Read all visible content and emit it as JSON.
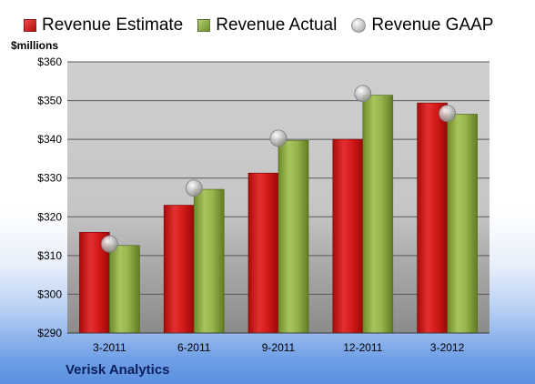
{
  "unit_label": "$millions",
  "company": "Verisk Analytics",
  "legend": [
    {
      "label": "Revenue Estimate",
      "kind": "bar",
      "color": "#c81414"
    },
    {
      "label": "Revenue Actual",
      "kind": "bar",
      "color": "#8fae45"
    },
    {
      "label": "Revenue GAAP",
      "kind": "marker",
      "color": "#b5b5b5"
    }
  ],
  "chart_data": {
    "type": "bar",
    "categories": [
      "3-2011",
      "6-2011",
      "9-2011",
      "12-2011",
      "3-2012"
    ],
    "series": [
      {
        "name": "Revenue Estimate",
        "values": [
          316,
          323,
          331.3,
          340,
          349.4
        ]
      },
      {
        "name": "Revenue Actual",
        "values": [
          312.6,
          327.1,
          339.7,
          351.4,
          346.5
        ]
      },
      {
        "name": "Revenue GAAP",
        "type": "scatter",
        "values": [
          313,
          327.4,
          340.3,
          351.8,
          346.7
        ]
      }
    ],
    "ylim": [
      290,
      360
    ],
    "yticks": [
      290,
      300,
      310,
      320,
      330,
      340,
      350,
      360
    ],
    "ytick_labels": [
      "$290",
      "$300",
      "$310",
      "$320",
      "$330",
      "$340",
      "$350",
      "$360"
    ],
    "grid": true,
    "legend_position": "top",
    "colors": {
      "estimate": "#c81414",
      "actual": "#8fae45",
      "gaap": "#b5b5b5"
    }
  }
}
